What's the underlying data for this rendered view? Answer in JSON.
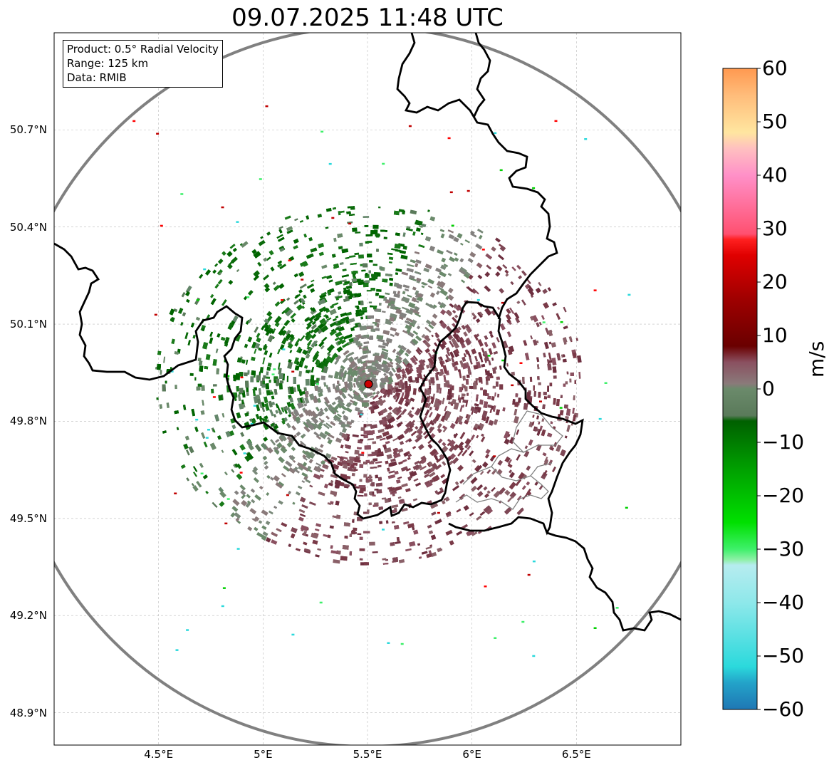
{
  "title": "09.07.2025 11:48 UTC",
  "info": {
    "product": "Product: 0.5° Radial Velocity",
    "range": "Range: 125 km",
    "source": "Data: RMIB"
  },
  "latitude_ticks": [
    {
      "label": "50.7°N",
      "value": 50.7
    },
    {
      "label": "50.4°N",
      "value": 50.4
    },
    {
      "label": "50.1°N",
      "value": 50.1
    },
    {
      "label": "49.8°N",
      "value": 49.8
    },
    {
      "label": "49.5°N",
      "value": 49.5
    },
    {
      "label": "49.2°N",
      "value": 49.2
    },
    {
      "label": "48.9°N",
      "value": 48.9
    }
  ],
  "longitude_ticks": [
    {
      "label": "4.5°E",
      "value": 4.5
    },
    {
      "label": "5°E",
      "value": 5.0
    },
    {
      "label": "5.5°E",
      "value": 5.5
    },
    {
      "label": "6°E",
      "value": 6.0
    },
    {
      "label": "6.5°E",
      "value": 6.5
    }
  ],
  "extent": {
    "lon": [
      4.0,
      7.0
    ],
    "lat": [
      48.8,
      51.0
    ]
  },
  "radar_site": {
    "lon": 5.505,
    "lat": 49.915
  },
  "colorbar": {
    "unit": "m/s",
    "min": -60,
    "max": 60,
    "ticks": [
      "60",
      "50",
      "40",
      "30",
      "20",
      "10",
      "0",
      "−10",
      "−20",
      "−30",
      "−40",
      "−50",
      "−60"
    ],
    "stops": [
      {
        "v": -60,
        "c": "#1f77b4"
      },
      {
        "v": -55,
        "c": "#23a3c9"
      },
      {
        "v": -52,
        "c": "#2bd9dc"
      },
      {
        "v": -40,
        "c": "#8ee8ea"
      },
      {
        "v": -33,
        "c": "#b6ecef"
      },
      {
        "v": -32,
        "c": "#8ff0a8"
      },
      {
        "v": -30,
        "c": "#3ef06a"
      },
      {
        "v": -25,
        "c": "#00e000"
      },
      {
        "v": -15,
        "c": "#00a000"
      },
      {
        "v": -6,
        "c": "#006000"
      },
      {
        "v": -5,
        "c": "#5a7a5a"
      },
      {
        "v": 0,
        "c": "#6b8a6b"
      },
      {
        "v": 1,
        "c": "#8a7a7a"
      },
      {
        "v": 5,
        "c": "#8a5060"
      },
      {
        "v": 8,
        "c": "#6a0000"
      },
      {
        "v": 17,
        "c": "#a00000"
      },
      {
        "v": 25,
        "c": "#e00000"
      },
      {
        "v": 28,
        "c": "#ff2020"
      },
      {
        "v": 29,
        "c": "#ff5070"
      },
      {
        "v": 40,
        "c": "#ff90c8"
      },
      {
        "v": 45,
        "c": "#ffc0c0"
      },
      {
        "v": 48,
        "c": "#ffe6a0"
      },
      {
        "v": 55,
        "c": "#ffbc7a"
      },
      {
        "v": 60,
        "c": "#ff9950"
      }
    ]
  },
  "colors": {
    "coverage_ring": "#808080",
    "border": "#000000",
    "admin_border": "#808080",
    "radar_site": "#cc0000"
  }
}
